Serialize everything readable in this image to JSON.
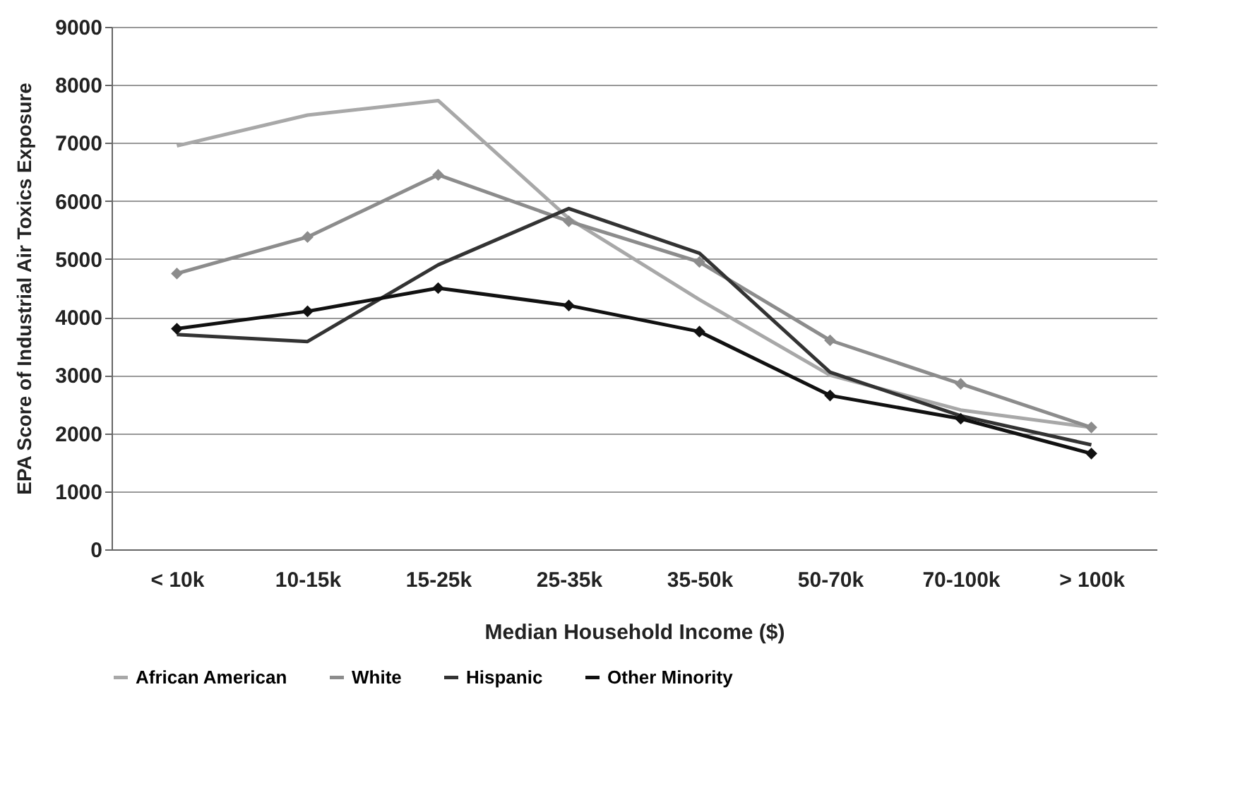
{
  "chart_data": {
    "type": "line",
    "xlabel": "Median Household Income ($)",
    "ylabel": "EPA Score of Industrial Air Toxics Exposure",
    "categories": [
      "< 10k",
      "10-15k",
      "15-25k",
      "25-35k",
      "35-50k",
      "50-70k",
      "70-100k",
      "> 100k"
    ],
    "ylim": [
      0,
      9000
    ],
    "yticks": [
      0,
      1000,
      2000,
      3000,
      4000,
      5000,
      6000,
      7000,
      8000,
      9000
    ],
    "grid": "y",
    "legend": "bottom",
    "series": [
      {
        "name": "African American",
        "color": "#a8a8a8",
        "marker": "none",
        "values": [
          6950,
          7480,
          7730,
          5700,
          4300,
          3000,
          2400,
          2100
        ]
      },
      {
        "name": "White",
        "color": "#8c8c8c",
        "marker": "diamond",
        "values": [
          4750,
          5380,
          6450,
          5650,
          4950,
          3600,
          2850,
          2100
        ]
      },
      {
        "name": "Hispanic",
        "color": "#333333",
        "marker": "none",
        "values": [
          3700,
          3580,
          4900,
          5870,
          5100,
          3050,
          2300,
          1800
        ]
      },
      {
        "name": "Other Minority",
        "color": "#111111",
        "marker": "diamond",
        "values": [
          3800,
          4100,
          4500,
          4200,
          3750,
          2650,
          2250,
          1650
        ]
      }
    ]
  }
}
